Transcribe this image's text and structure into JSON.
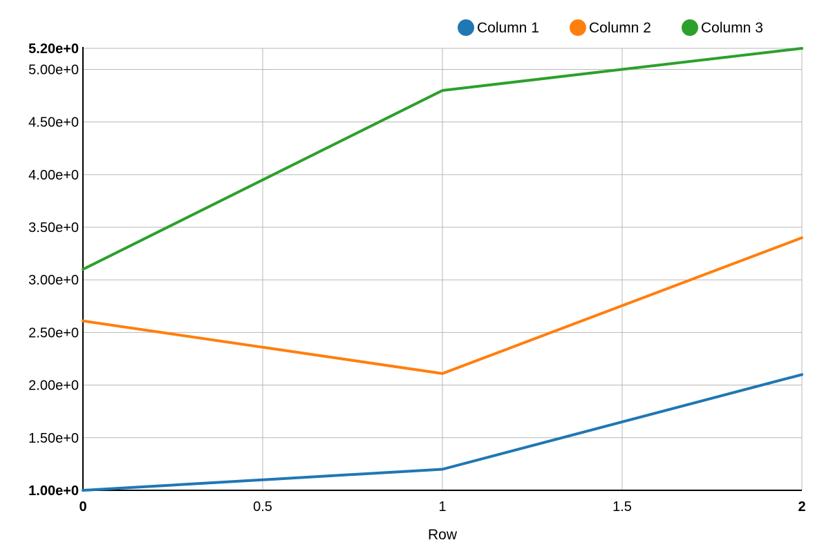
{
  "chart_data": {
    "type": "line",
    "xlabel": "Row",
    "ylabel": "",
    "xlim": [
      0,
      2
    ],
    "ylim": [
      1.0,
      5.2
    ],
    "grid": true,
    "legend_position": "top-right",
    "x_ticks": [
      {
        "value": 0,
        "label": "0",
        "bold": true
      },
      {
        "value": 0.5,
        "label": "0.5",
        "bold": false
      },
      {
        "value": 1,
        "label": "1",
        "bold": false
      },
      {
        "value": 1.5,
        "label": "1.5",
        "bold": false
      },
      {
        "value": 2,
        "label": "2",
        "bold": true
      }
    ],
    "y_ticks": [
      {
        "value": 1.0,
        "label": "1.00e+0",
        "bold": true
      },
      {
        "value": 1.5,
        "label": "1.50e+0",
        "bold": false
      },
      {
        "value": 2.0,
        "label": "2.00e+0",
        "bold": false
      },
      {
        "value": 2.5,
        "label": "2.50e+0",
        "bold": false
      },
      {
        "value": 3.0,
        "label": "3.00e+0",
        "bold": false
      },
      {
        "value": 3.5,
        "label": "3.50e+0",
        "bold": false
      },
      {
        "value": 4.0,
        "label": "4.00e+0",
        "bold": false
      },
      {
        "value": 4.5,
        "label": "4.50e+0",
        "bold": false
      },
      {
        "value": 5.0,
        "label": "5.00e+0",
        "bold": false
      },
      {
        "value": 5.2,
        "label": "5.20e+0",
        "bold": true
      }
    ],
    "x": [
      0,
      1,
      2
    ],
    "series": [
      {
        "name": "Column 1",
        "color": "#1f77b4",
        "values": [
          1.0,
          1.2,
          2.1
        ]
      },
      {
        "name": "Column 2",
        "color": "#ff7f0e",
        "values": [
          2.61,
          2.11,
          3.4
        ]
      },
      {
        "name": "Column 3",
        "color": "#2ca02c",
        "values": [
          3.1,
          4.8,
          5.2
        ]
      }
    ]
  }
}
